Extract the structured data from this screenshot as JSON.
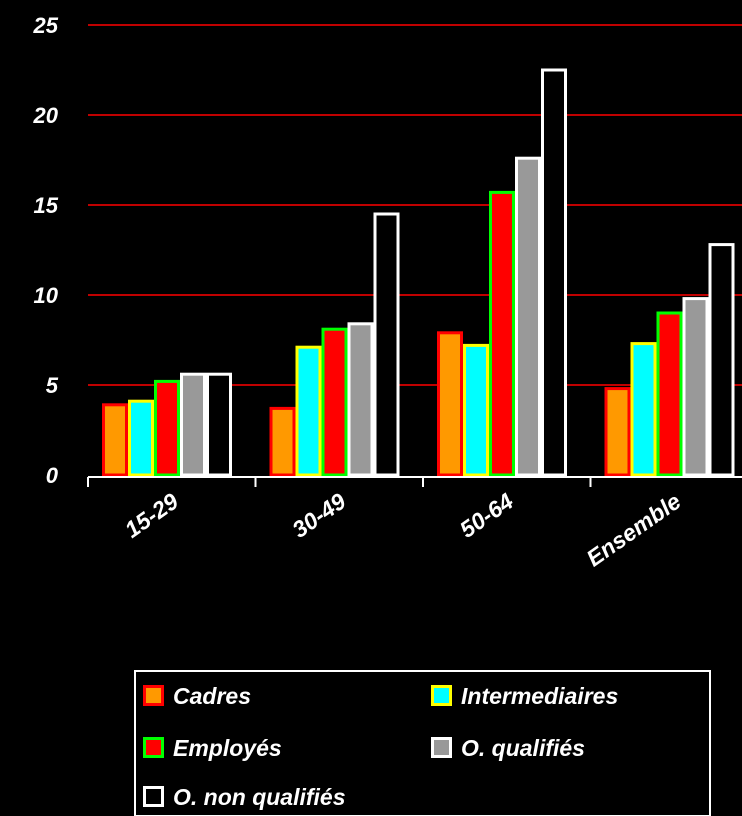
{
  "chart_data": {
    "type": "bar",
    "categories": [
      "15-29",
      "30-49",
      "50-64",
      "Ensemble"
    ],
    "series": [
      {
        "name": "Cadres",
        "values": [
          3.9,
          3.7,
          7.9,
          4.8
        ],
        "fill": "#FF9900",
        "border": "#FF0000"
      },
      {
        "name": "Intermediaires",
        "values": [
          4.1,
          7.1,
          7.2,
          7.3
        ],
        "fill": "#00FFFF",
        "border": "#FFFF00"
      },
      {
        "name": "Employés",
        "values": [
          5.2,
          8.1,
          15.7,
          9.0
        ],
        "fill": "#FF0000",
        "border": "#00FF00"
      },
      {
        "name": "O. qualifiés",
        "values": [
          5.6,
          8.4,
          17.6,
          9.8
        ],
        "fill": "#999999",
        "border": "#FFFFFF"
      },
      {
        "name": "O. non qualifiés",
        "values": [
          5.6,
          14.5,
          22.5,
          12.8
        ],
        "fill": "#000000",
        "border": "#FFFFFF"
      }
    ],
    "yticks": [
      0,
      5,
      10,
      15,
      20,
      25
    ],
    "ylim": [
      0,
      25
    ],
    "grid": true,
    "grid_color": "#FF0000",
    "background": "#000000",
    "legend_position": "bottom"
  }
}
